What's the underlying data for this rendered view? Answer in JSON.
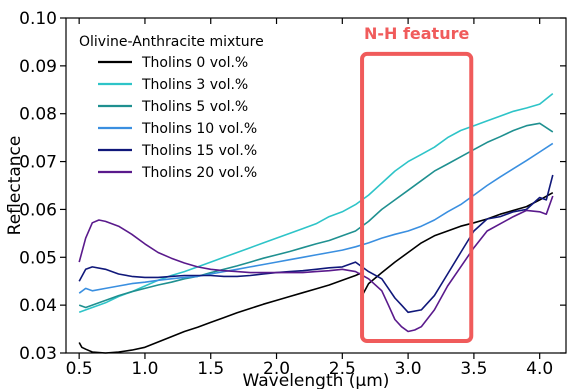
{
  "chart_data": {
    "type": "line",
    "title": "",
    "xlabel": "Wavelength (µm)",
    "ylabel": "Reflectance",
    "xlim": [
      0.4,
      4.2
    ],
    "ylim": [
      0.03,
      0.1
    ],
    "xticks": [
      0.5,
      1.0,
      1.5,
      2.0,
      2.5,
      3.0,
      3.5,
      4.0
    ],
    "xtick_labels": [
      "0.5",
      "1.0",
      "1.5",
      "2.0",
      "2.5",
      "3.0",
      "3.5",
      "4.0"
    ],
    "yticks": [
      0.03,
      0.04,
      0.05,
      0.06,
      0.07,
      0.08,
      0.09,
      0.1
    ],
    "ytick_labels": [
      "0.03",
      "0.04",
      "0.05",
      "0.06",
      "0.07",
      "0.08",
      "0.09",
      "0.10"
    ],
    "grid": false,
    "legend": {
      "title": "Olivine-Anthracite mixture",
      "placement": "top-left"
    },
    "annotation": {
      "label": "N-H feature",
      "x_range": [
        2.65,
        3.48
      ],
      "y_range": [
        0.0325,
        0.0925
      ],
      "color": "#f05b5b"
    },
    "series": [
      {
        "name": "Tholins 0 vol.%",
        "color": "#000000",
        "x": [
          0.5,
          0.52,
          0.55,
          0.6,
          0.7,
          0.8,
          0.9,
          1.0,
          1.1,
          1.2,
          1.3,
          1.4,
          1.5,
          1.6,
          1.7,
          1.8,
          1.9,
          2.0,
          2.1,
          2.2,
          2.3,
          2.4,
          2.5,
          2.6,
          2.65,
          2.66,
          2.7,
          2.8,
          2.9,
          3.0,
          3.1,
          3.2,
          3.3,
          3.4,
          3.5,
          3.6,
          3.7,
          3.8,
          3.9,
          4.0,
          4.1
        ],
        "y": [
          0.0322,
          0.0312,
          0.0308,
          0.0302,
          0.03,
          0.0302,
          0.0306,
          0.0312,
          0.0323,
          0.0334,
          0.0345,
          0.0354,
          0.0364,
          0.0374,
          0.0384,
          0.0393,
          0.0402,
          0.041,
          0.0418,
          0.0426,
          0.0434,
          0.0442,
          0.0452,
          0.0462,
          0.0468,
          0.0425,
          0.0445,
          0.0468,
          0.049,
          0.051,
          0.053,
          0.0545,
          0.0555,
          0.0565,
          0.0572,
          0.058,
          0.059,
          0.0598,
          0.0606,
          0.062,
          0.0635
        ]
      },
      {
        "name": "Tholins 3 vol.%",
        "color": "#2ec4c8",
        "x": [
          0.5,
          0.55,
          0.6,
          0.7,
          0.8,
          0.9,
          1.0,
          1.1,
          1.2,
          1.3,
          1.4,
          1.5,
          1.6,
          1.7,
          1.8,
          1.9,
          2.0,
          2.1,
          2.2,
          2.3,
          2.4,
          2.5,
          2.6,
          2.7,
          2.8,
          2.9,
          3.0,
          3.1,
          3.2,
          3.3,
          3.4,
          3.5,
          3.6,
          3.7,
          3.8,
          3.9,
          4.0,
          4.1
        ],
        "y": [
          0.0385,
          0.039,
          0.0395,
          0.0405,
          0.0418,
          0.0428,
          0.044,
          0.0452,
          0.0462,
          0.047,
          0.048,
          0.049,
          0.05,
          0.051,
          0.052,
          0.053,
          0.054,
          0.055,
          0.056,
          0.057,
          0.0585,
          0.0595,
          0.061,
          0.063,
          0.0655,
          0.068,
          0.07,
          0.0715,
          0.073,
          0.075,
          0.0765,
          0.0775,
          0.0785,
          0.0795,
          0.0805,
          0.0812,
          0.082,
          0.0842
        ]
      },
      {
        "name": "Tholins 5 vol.%",
        "color": "#1f9090",
        "x": [
          0.5,
          0.55,
          0.6,
          0.7,
          0.8,
          0.9,
          1.0,
          1.1,
          1.2,
          1.3,
          1.4,
          1.5,
          1.6,
          1.7,
          1.8,
          1.9,
          2.0,
          2.1,
          2.2,
          2.3,
          2.4,
          2.5,
          2.6,
          2.7,
          2.8,
          2.9,
          3.0,
          3.1,
          3.2,
          3.3,
          3.4,
          3.5,
          3.6,
          3.7,
          3.8,
          3.9,
          4.0,
          4.1
        ],
        "y": [
          0.04,
          0.0395,
          0.04,
          0.041,
          0.042,
          0.0428,
          0.0435,
          0.0442,
          0.0448,
          0.0455,
          0.046,
          0.0468,
          0.0475,
          0.0482,
          0.049,
          0.0498,
          0.0505,
          0.0512,
          0.052,
          0.0528,
          0.0535,
          0.0545,
          0.0555,
          0.0575,
          0.06,
          0.062,
          0.064,
          0.066,
          0.068,
          0.0695,
          0.071,
          0.0725,
          0.074,
          0.0752,
          0.0765,
          0.0775,
          0.078,
          0.0762
        ]
      },
      {
        "name": "Tholins 10 vol.%",
        "color": "#3a8fe0",
        "x": [
          0.5,
          0.55,
          0.6,
          0.7,
          0.8,
          0.9,
          1.0,
          1.1,
          1.2,
          1.3,
          1.4,
          1.5,
          1.6,
          1.7,
          1.8,
          1.9,
          2.0,
          2.1,
          2.2,
          2.3,
          2.4,
          2.5,
          2.6,
          2.7,
          2.8,
          2.9,
          3.0,
          3.1,
          3.2,
          3.3,
          3.4,
          3.5,
          3.6,
          3.7,
          3.8,
          3.9,
          4.0,
          4.1
        ],
        "y": [
          0.0425,
          0.0435,
          0.043,
          0.0435,
          0.044,
          0.0445,
          0.0448,
          0.0452,
          0.0455,
          0.0458,
          0.046,
          0.0465,
          0.047,
          0.0475,
          0.048,
          0.0485,
          0.049,
          0.0495,
          0.05,
          0.0505,
          0.051,
          0.0515,
          0.0522,
          0.053,
          0.054,
          0.0548,
          0.0555,
          0.0565,
          0.0578,
          0.0595,
          0.061,
          0.063,
          0.065,
          0.0668,
          0.0685,
          0.0702,
          0.072,
          0.0738
        ]
      },
      {
        "name": "Tholins 15 vol.%",
        "color": "#10187a",
        "x": [
          0.5,
          0.55,
          0.6,
          0.7,
          0.8,
          0.9,
          1.0,
          1.1,
          1.2,
          1.3,
          1.4,
          1.5,
          1.6,
          1.7,
          1.8,
          1.9,
          2.0,
          2.1,
          2.2,
          2.3,
          2.4,
          2.5,
          2.6,
          2.7,
          2.8,
          2.85,
          2.9,
          2.95,
          3.0,
          3.1,
          3.2,
          3.3,
          3.4,
          3.5,
          3.6,
          3.7,
          3.8,
          3.9,
          4.0,
          4.05,
          4.1
        ],
        "y": [
          0.045,
          0.0475,
          0.048,
          0.0475,
          0.0465,
          0.046,
          0.0458,
          0.0458,
          0.046,
          0.0462,
          0.0462,
          0.0462,
          0.046,
          0.046,
          0.0462,
          0.0465,
          0.0468,
          0.047,
          0.0472,
          0.0475,
          0.0478,
          0.048,
          0.049,
          0.047,
          0.0455,
          0.0435,
          0.0415,
          0.04,
          0.0385,
          0.039,
          0.042,
          0.0465,
          0.051,
          0.0555,
          0.058,
          0.0585,
          0.0595,
          0.06,
          0.0625,
          0.062,
          0.0672
        ]
      },
      {
        "name": "Tholins 20 vol.%",
        "color": "#5a1a8c",
        "x": [
          0.5,
          0.55,
          0.6,
          0.65,
          0.7,
          0.8,
          0.9,
          1.0,
          1.1,
          1.2,
          1.3,
          1.4,
          1.5,
          1.6,
          1.7,
          1.8,
          1.9,
          2.0,
          2.1,
          2.2,
          2.3,
          2.4,
          2.5,
          2.6,
          2.7,
          2.8,
          2.85,
          2.9,
          2.95,
          3.0,
          3.05,
          3.1,
          3.2,
          3.3,
          3.4,
          3.5,
          3.6,
          3.7,
          3.8,
          3.9,
          4.0,
          4.05,
          4.1
        ],
        "y": [
          0.049,
          0.054,
          0.0572,
          0.0578,
          0.0575,
          0.0565,
          0.0548,
          0.0528,
          0.051,
          0.0498,
          0.0488,
          0.048,
          0.0475,
          0.0472,
          0.047,
          0.0468,
          0.0468,
          0.0468,
          0.0468,
          0.0468,
          0.047,
          0.0472,
          0.0475,
          0.047,
          0.0455,
          0.043,
          0.04,
          0.037,
          0.0355,
          0.0345,
          0.0348,
          0.0355,
          0.039,
          0.044,
          0.048,
          0.052,
          0.0555,
          0.057,
          0.0585,
          0.0598,
          0.0595,
          0.059,
          0.0628
        ]
      }
    ]
  }
}
